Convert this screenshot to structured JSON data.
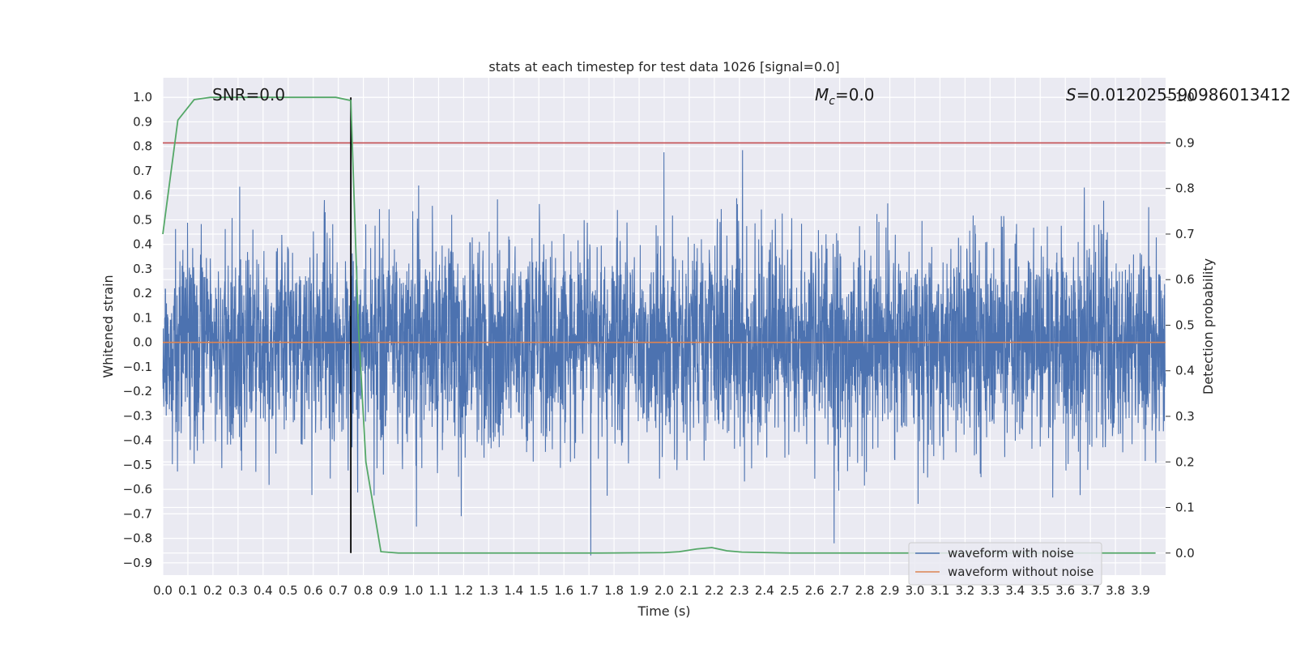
{
  "chart_data": {
    "type": "line",
    "title": "stats at each timestep for test data 1026 [signal=0.0]",
    "xlabel": "Time (s)",
    "ylabel_left": "Whitened strain",
    "ylabel_right": "Detection probability",
    "xlim": [
      0.0,
      4.0
    ],
    "ylim_left": [
      -0.95,
      1.08
    ],
    "ylim_right": [
      0.0,
      1.0
    ],
    "x_ticks": [
      0.0,
      0.1,
      0.2,
      0.3,
      0.4,
      0.5,
      0.6,
      0.7,
      0.8,
      0.9,
      1.0,
      1.1,
      1.2,
      1.3,
      1.4,
      1.5,
      1.6,
      1.7,
      1.8,
      1.9,
      2.0,
      2.1,
      2.2,
      2.3,
      2.4,
      2.5,
      2.6,
      2.7,
      2.8,
      2.9,
      3.0,
      3.1,
      3.2,
      3.3,
      3.4,
      3.5,
      3.6,
      3.7,
      3.8,
      3.9
    ],
    "x_tick_labels": [
      "0.0",
      "0.1",
      "0.2",
      "0.3",
      "0.4",
      "0.5",
      "0.6",
      "0.7",
      "0.8",
      "0.9",
      "1.0",
      "1.1",
      "1.2",
      "1.3",
      "1.4",
      "1.5",
      "1.6",
      "1.7",
      "1.8",
      "1.9",
      "2.0",
      "2.1",
      "2.2",
      "2.3",
      "2.4",
      "2.5",
      "2.6",
      "2.7",
      "2.8",
      "2.9",
      "3.0",
      "3.1",
      "3.2",
      "3.3",
      "3.4",
      "3.5",
      "3.6",
      "3.7",
      "3.8",
      "3.9"
    ],
    "y_left_ticks": [
      1.0,
      0.9,
      0.8,
      0.7,
      0.6,
      0.5,
      0.4,
      0.3,
      0.2,
      0.1,
      0.0,
      -0.1,
      -0.2,
      -0.3,
      -0.4,
      -0.5,
      -0.6,
      -0.7,
      -0.8,
      -0.9
    ],
    "y_left_tick_labels": [
      "1.0",
      "0.9",
      "0.8",
      "0.7",
      "0.6",
      "0.5",
      "0.4",
      "0.3",
      "0.2",
      "0.1",
      "0.0",
      "−0.1",
      "−0.2",
      "−0.3",
      "−0.4",
      "−0.5",
      "−0.6",
      "−0.7",
      "−0.8",
      "−0.9"
    ],
    "y_right_ticks": [
      1.0,
      0.9,
      0.8,
      0.7,
      0.6,
      0.5,
      0.4,
      0.3,
      0.2,
      0.1,
      0.0
    ],
    "y_right_tick_labels": [
      "1.0",
      "0.9",
      "0.8",
      "0.7",
      "0.6",
      "0.5",
      "0.4",
      "0.3",
      "0.2",
      "0.1",
      "0.0"
    ],
    "grid": true,
    "legend": {
      "placement": "lower-right",
      "entries": [
        {
          "label": "waveform with noise",
          "color": "#4c72b0"
        },
        {
          "label": "waveform without noise",
          "color": "#dd8452"
        }
      ]
    },
    "annotations": {
      "snr": "SNR=0.0",
      "mc_symbol": "M",
      "mc_sub": "c",
      "mc_value": "=0.0",
      "s_symbol": "S",
      "s_value": "=0.012025590986013412"
    },
    "series": [
      {
        "name": "waveform with noise",
        "axis": "left",
        "color": "#4c72b0",
        "generated": "dense noise, 4096 samples over 0–4 s, approx range −0.87 to 1.0"
      },
      {
        "name": "waveform without noise",
        "axis": "left",
        "color": "#dd8452",
        "x": [
          0.0,
          4.0
        ],
        "y": [
          0.0,
          0.0
        ]
      },
      {
        "name": "detection probability",
        "axis": "right",
        "color": "#55a868",
        "x": [
          0.0,
          0.06,
          0.125,
          0.19,
          0.25,
          0.5,
          0.69,
          0.75,
          0.78,
          0.81,
          0.87,
          0.94,
          1.0,
          1.25,
          1.5,
          1.75,
          2.0,
          2.06,
          2.13,
          2.19,
          2.25,
          2.31,
          2.5,
          2.75,
          3.0,
          3.25,
          3.5,
          3.75,
          3.96
        ],
        "y": [
          0.7,
          0.95,
          0.995,
          1.0,
          1.0,
          1.0,
          1.0,
          0.993,
          0.5,
          0.2,
          0.003,
          0.0,
          0.0,
          0.0,
          0.0,
          0.0,
          0.001,
          0.003,
          0.009,
          0.012,
          0.005,
          0.002,
          0.0,
          0.0,
          0.0,
          0.0,
          0.0,
          0.0,
          0.0
        ]
      }
    ],
    "reference_lines": {
      "threshold_right": 0.9,
      "threshold_color": "#c44e52",
      "event_time": 0.75,
      "event_color": "#000000"
    }
  }
}
